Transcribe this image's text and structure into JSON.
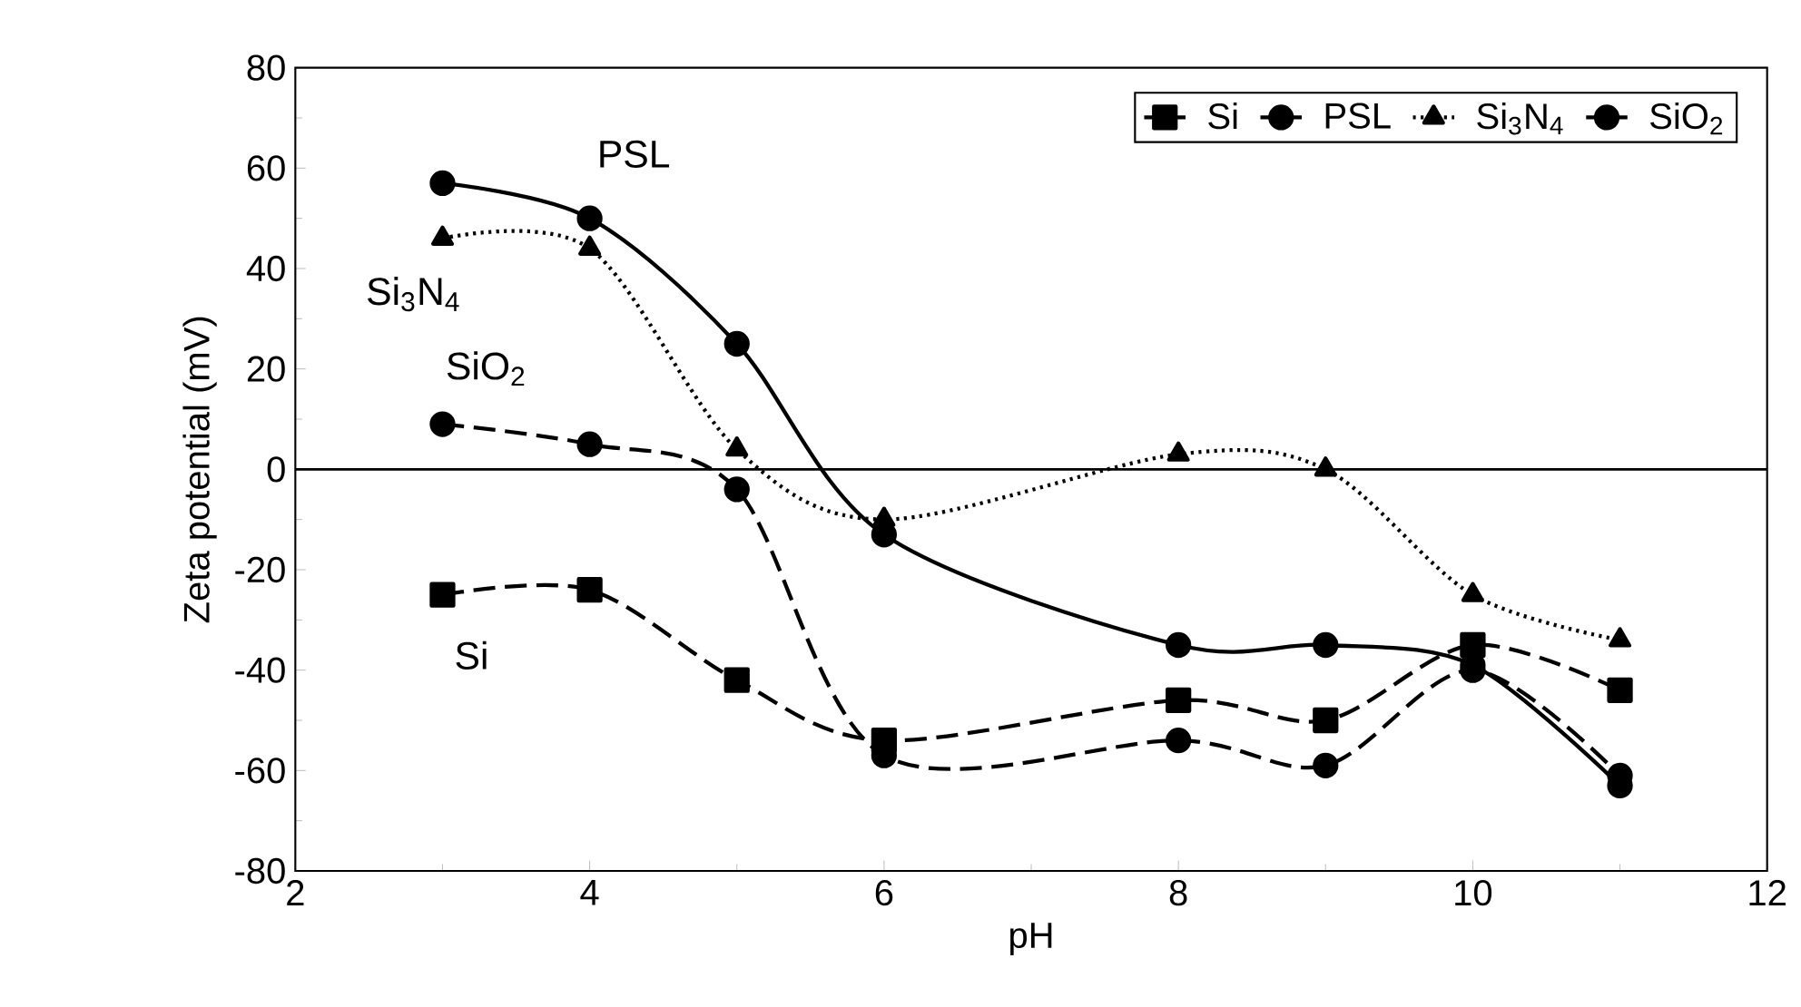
{
  "chart_data": {
    "type": "line",
    "xlabel": "pH",
    "ylabel": "Zeta potential (mV)",
    "xlim": [
      2,
      12
    ],
    "ylim": [
      -80,
      80
    ],
    "xticks": [
      2,
      4,
      6,
      8,
      10,
      12
    ],
    "yticks": [
      -80,
      -60,
      -40,
      -20,
      0,
      20,
      40,
      60,
      80
    ],
    "legend": "top right",
    "grid": false,
    "ref_lines": [
      {
        "axis": "y",
        "value": 0,
        "color": "#000000",
        "line_style": "solid"
      }
    ],
    "series": [
      {
        "name": "Si",
        "color": "#000000",
        "marker": "square",
        "line_style": "dashed",
        "x": [
          3,
          4,
          5,
          6,
          8,
          9,
          10,
          11
        ],
        "values": [
          -25,
          -24,
          -42,
          -54,
          -46,
          -50,
          -35,
          -44
        ]
      },
      {
        "name": "PSL",
        "color": "#000000",
        "marker": "circle",
        "line_style": "solid",
        "x": [
          3,
          4,
          5,
          6,
          8,
          9,
          10,
          11
        ],
        "values": [
          57,
          50,
          25,
          -13,
          -35,
          -35,
          -39,
          -63
        ]
      },
      {
        "name": "Si$_{3}$N$_{4}$",
        "color": "#000000",
        "marker": "triangle",
        "line_style": "dotted",
        "x": [
          3,
          4,
          5,
          6,
          8,
          9,
          10,
          11
        ],
        "values": [
          46,
          44,
          4,
          -10,
          3,
          0,
          -25,
          -34
        ]
      },
      {
        "name": "SiO$_{2}$",
        "color": "#000000",
        "marker": "circle",
        "line_style": "dashed",
        "x": [
          3,
          4,
          5,
          6,
          8,
          9,
          10,
          11
        ],
        "values": [
          9,
          5,
          -4,
          -57,
          -54,
          -59,
          -40,
          -61
        ]
      }
    ]
  }
}
